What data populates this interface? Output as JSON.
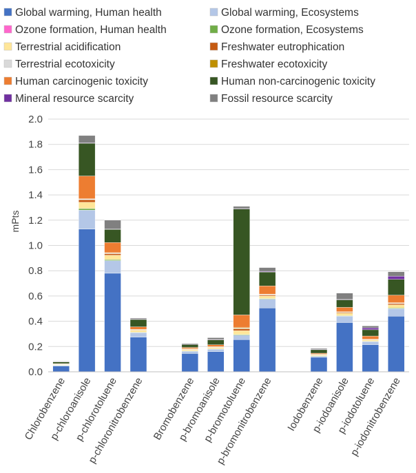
{
  "chart_data": {
    "type": "bar",
    "stacked": true,
    "ylabel": "mPts",
    "ylim": [
      0,
      2.0
    ],
    "yticks": [
      "0.0",
      "0.2",
      "0.4",
      "0.6",
      "0.8",
      "1.0",
      "1.2",
      "1.4",
      "1.6",
      "1.8",
      "2.0"
    ],
    "grid": true,
    "legend_position": "top",
    "categories": [
      "Chlorobenzene",
      "p-chloroanisole",
      "p-chlorotoluene",
      "p-chloronitrobenzene",
      "Bromobenzene",
      "p-bromoanisole",
      "p-bromotoluene",
      "p-bromonitrobenzene",
      "Iodobenzene",
      "p-iodoanisole",
      "p-iodotoluene",
      "p-iodonitrobenzene"
    ],
    "groups": [
      [
        0,
        1,
        2,
        3
      ],
      [
        4,
        5,
        6,
        7
      ],
      [
        8,
        9,
        10,
        11
      ]
    ],
    "series": [
      {
        "name": "Global warming, Human health",
        "color": "#4472C4",
        "values": [
          0.045,
          1.13,
          0.78,
          0.275,
          0.145,
          0.16,
          0.255,
          0.505,
          0.115,
          0.39,
          0.215,
          0.44
        ]
      },
      {
        "name": "Global warming,  Ecosystems",
        "color": "#B4C7E7",
        "values": [
          0.008,
          0.15,
          0.1,
          0.035,
          0.018,
          0.02,
          0.035,
          0.07,
          0.01,
          0.05,
          0.025,
          0.06
        ]
      },
      {
        "name": "Ozone formation, Human health",
        "color": "#FF66CC",
        "values": [
          0,
          0,
          0,
          0,
          0,
          0,
          0,
          0,
          0,
          0,
          0,
          0
        ]
      },
      {
        "name": "Ozone formation, Ecosystems",
        "color": "#70AD47",
        "values": [
          0.001,
          0.012,
          0.008,
          0.003,
          0.002,
          0.002,
          0.005,
          0.005,
          0.001,
          0.004,
          0.002,
          0.005
        ]
      },
      {
        "name": "Terrestrial acidification",
        "color": "#FFE699",
        "values": [
          0.004,
          0.05,
          0.035,
          0.015,
          0.01,
          0.01,
          0.03,
          0.02,
          0.008,
          0.02,
          0.01,
          0.025
        ]
      },
      {
        "name": "Freshwater eutrophication",
        "color": "#C55A11",
        "values": [
          0.002,
          0.02,
          0.012,
          0.005,
          0.005,
          0.004,
          0.015,
          0.008,
          0.003,
          0.006,
          0.003,
          0.01
        ]
      },
      {
        "name": "Terrestrial ecotoxicity",
        "color": "#D9D9D9",
        "values": [
          0.001,
          0.005,
          0.005,
          0.002,
          0.002,
          0.002,
          0.005,
          0.004,
          0.001,
          0.003,
          0.002,
          0.004
        ]
      },
      {
        "name": "Freshwater ecotoxicity",
        "color": "#BF9000",
        "values": [
          0.001,
          0.003,
          0.003,
          0.001,
          0.001,
          0.001,
          0.005,
          0.003,
          0.001,
          0.002,
          0.001,
          0.003
        ]
      },
      {
        "name": "Human carcinogenic toxicity",
        "color": "#ED7D31",
        "values": [
          0.003,
          0.18,
          0.08,
          0.02,
          0.01,
          0.015,
          0.1,
          0.065,
          0.008,
          0.035,
          0.025,
          0.06
        ]
      },
      {
        "name": "Human non-carcinogenic toxicity",
        "color": "#375623",
        "values": [
          0.015,
          0.26,
          0.105,
          0.06,
          0.025,
          0.04,
          0.84,
          0.11,
          0.03,
          0.06,
          0.05,
          0.125
        ]
      },
      {
        "name": "Mineral resource scarcity",
        "color": "#7030A0",
        "values": [
          0.001,
          0.002,
          0.002,
          0.001,
          0.001,
          0.002,
          0.002,
          0.005,
          0.001,
          0.003,
          0.015,
          0.025
        ]
      },
      {
        "name": "Fossil resource scarcity",
        "color": "#808080",
        "values": [
          0.003,
          0.058,
          0.07,
          0.008,
          0.006,
          0.014,
          0.018,
          0.03,
          0.007,
          0.05,
          0.015,
          0.035
        ]
      }
    ]
  }
}
